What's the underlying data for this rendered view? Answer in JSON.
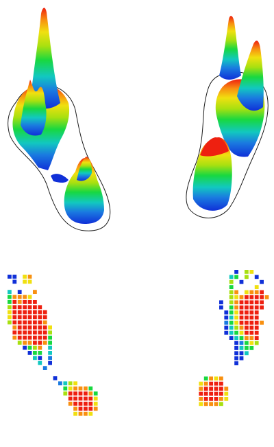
{
  "colors": {
    "background": "#ffffff",
    "outline": "#1a1a1a",
    "scale": [
      "#1030d8",
      "#1a7ae0",
      "#12c8c0",
      "#18d840",
      "#a8e010",
      "#f0e010",
      "#f89010",
      "#ee2010"
    ]
  },
  "panels": {
    "surface_3d": {
      "feet": [
        "left-foot-3d-surface",
        "right-foot-3d-surface"
      ]
    },
    "sensor_grid": {
      "feet": [
        "left-foot-sensor-grid",
        "right-foot-sensor-grid"
      ]
    }
  }
}
